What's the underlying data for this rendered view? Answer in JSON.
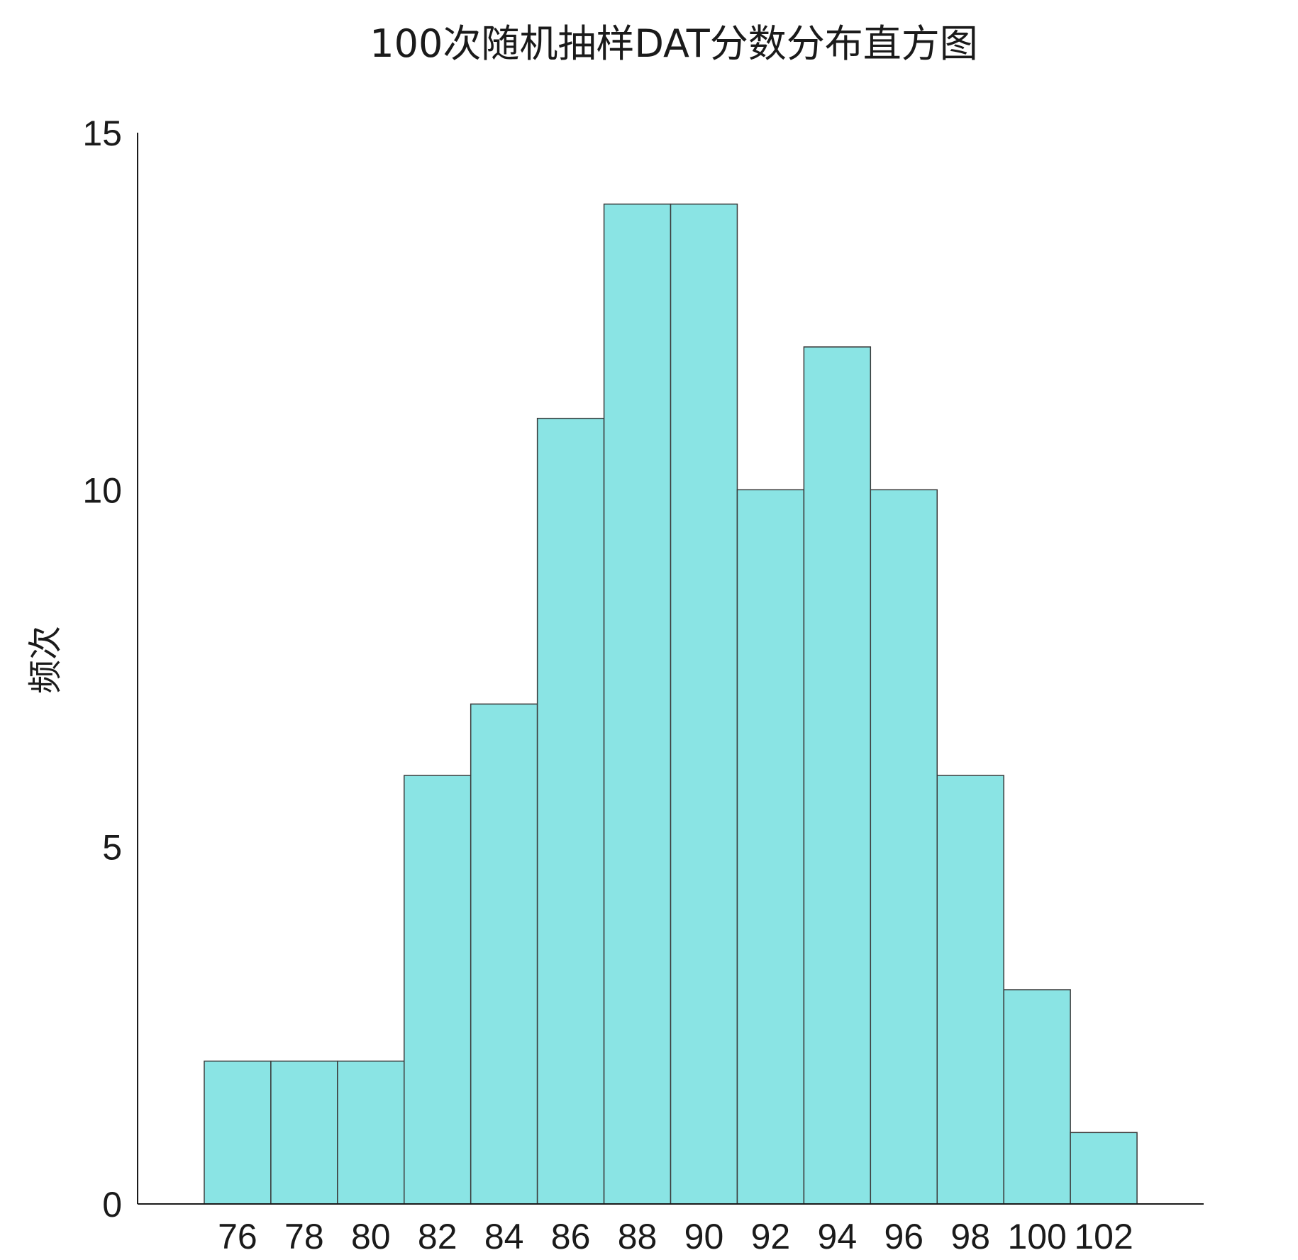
{
  "chart_data": {
    "type": "bar",
    "title": "100次随机抽样DAT分数分布直方图",
    "xlabel": "",
    "ylabel": "频次",
    "bin_edges": [
      75,
      77,
      79,
      81,
      83,
      85,
      87,
      89,
      91,
      93,
      95,
      97,
      99,
      101,
      103
    ],
    "categories": [
      "75-77",
      "77-79",
      "79-81",
      "81-83",
      "83-85",
      "85-87",
      "87-89",
      "89-91",
      "91-93",
      "93-95",
      "95-97",
      "97-99",
      "99-101",
      "101-103"
    ],
    "values": [
      2,
      2,
      2,
      6,
      7,
      11,
      14,
      14,
      10,
      12,
      10,
      6,
      3,
      1
    ],
    "x_ticks": [
      76,
      78,
      80,
      82,
      84,
      86,
      88,
      90,
      92,
      94,
      96,
      98,
      100,
      102
    ],
    "y_ticks": [
      0,
      5,
      10,
      15
    ],
    "xlim": [
      73,
      105
    ],
    "ylim": [
      0,
      15
    ],
    "grid": false,
    "bar_color": "#8ae4e4",
    "edge_color": "#3a3a3a"
  }
}
